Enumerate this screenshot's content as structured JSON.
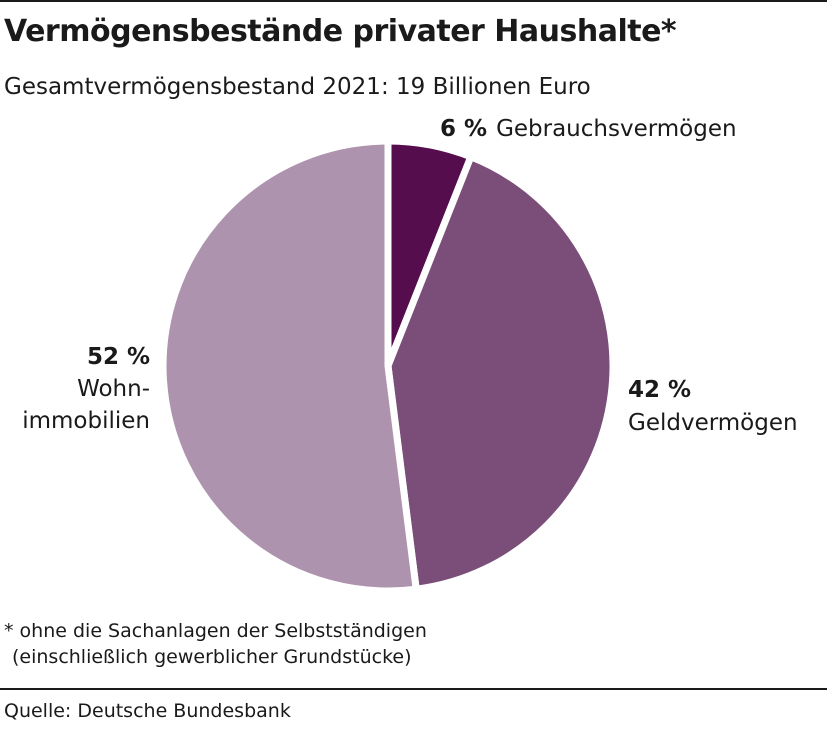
{
  "header": {
    "title": "Vermögensbestände privater Haushalte*",
    "subtitle": "Gesamtvermögensbestand 2021: 19 Billionen Euro"
  },
  "chart_data": {
    "type": "pie",
    "unit": "%",
    "slices": [
      {
        "label": "Gebrauchsvermögen",
        "value": 6,
        "value_label": "6 %",
        "color": "#560d4d"
      },
      {
        "label": "Geldvermögen",
        "value": 42,
        "value_label": "42 %",
        "color": "#7b4d79"
      },
      {
        "label_lines": [
          "Wohn-",
          "immobilien"
        ],
        "value": 52,
        "value_label": "52 %",
        "color": "#ad93ae"
      }
    ]
  },
  "footnote": {
    "line1": "* ohne die Sachanlagen der Selbstständigen",
    "line2": "(einschließlich gewerblicher Grundstücke)"
  },
  "source": "Quelle: Deutsche Bundesbank"
}
